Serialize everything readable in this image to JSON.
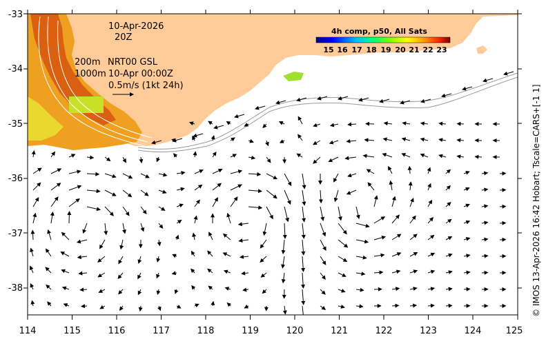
{
  "map": {
    "x_ticks": [
      "114",
      "115",
      "116",
      "117",
      "118",
      "119",
      "120",
      "121",
      "122",
      "123",
      "124",
      "125"
    ],
    "y_ticks": [
      "-33",
      "-34",
      "-35",
      "-36",
      "-37",
      "-38"
    ],
    "date": "10-Apr-2026",
    "hour": "20Z",
    "isobath_shallow": "200m",
    "isobath_deep": "1000m",
    "product": "NRT00 GSL",
    "product_time": "10-Apr 00:00Z",
    "scale_label": "0.5m/s (1kt 24h)",
    "legend": {
      "title": "4h comp, p50, All Sats",
      "ticks": [
        "15",
        "16",
        "17",
        "18",
        "19",
        "20",
        "21",
        "22",
        "23"
      ],
      "colors": [
        "#00007f",
        "#0000ff",
        "#007fff",
        "#00ffff",
        "#7fff7f",
        "#ffff00",
        "#ff7f00",
        "#ff0000",
        "#7f0000"
      ]
    },
    "credit": "© IMOS 13-Apr-2026 16:42 Hobart; Tscale=CARS+[-1 1]"
  }
}
